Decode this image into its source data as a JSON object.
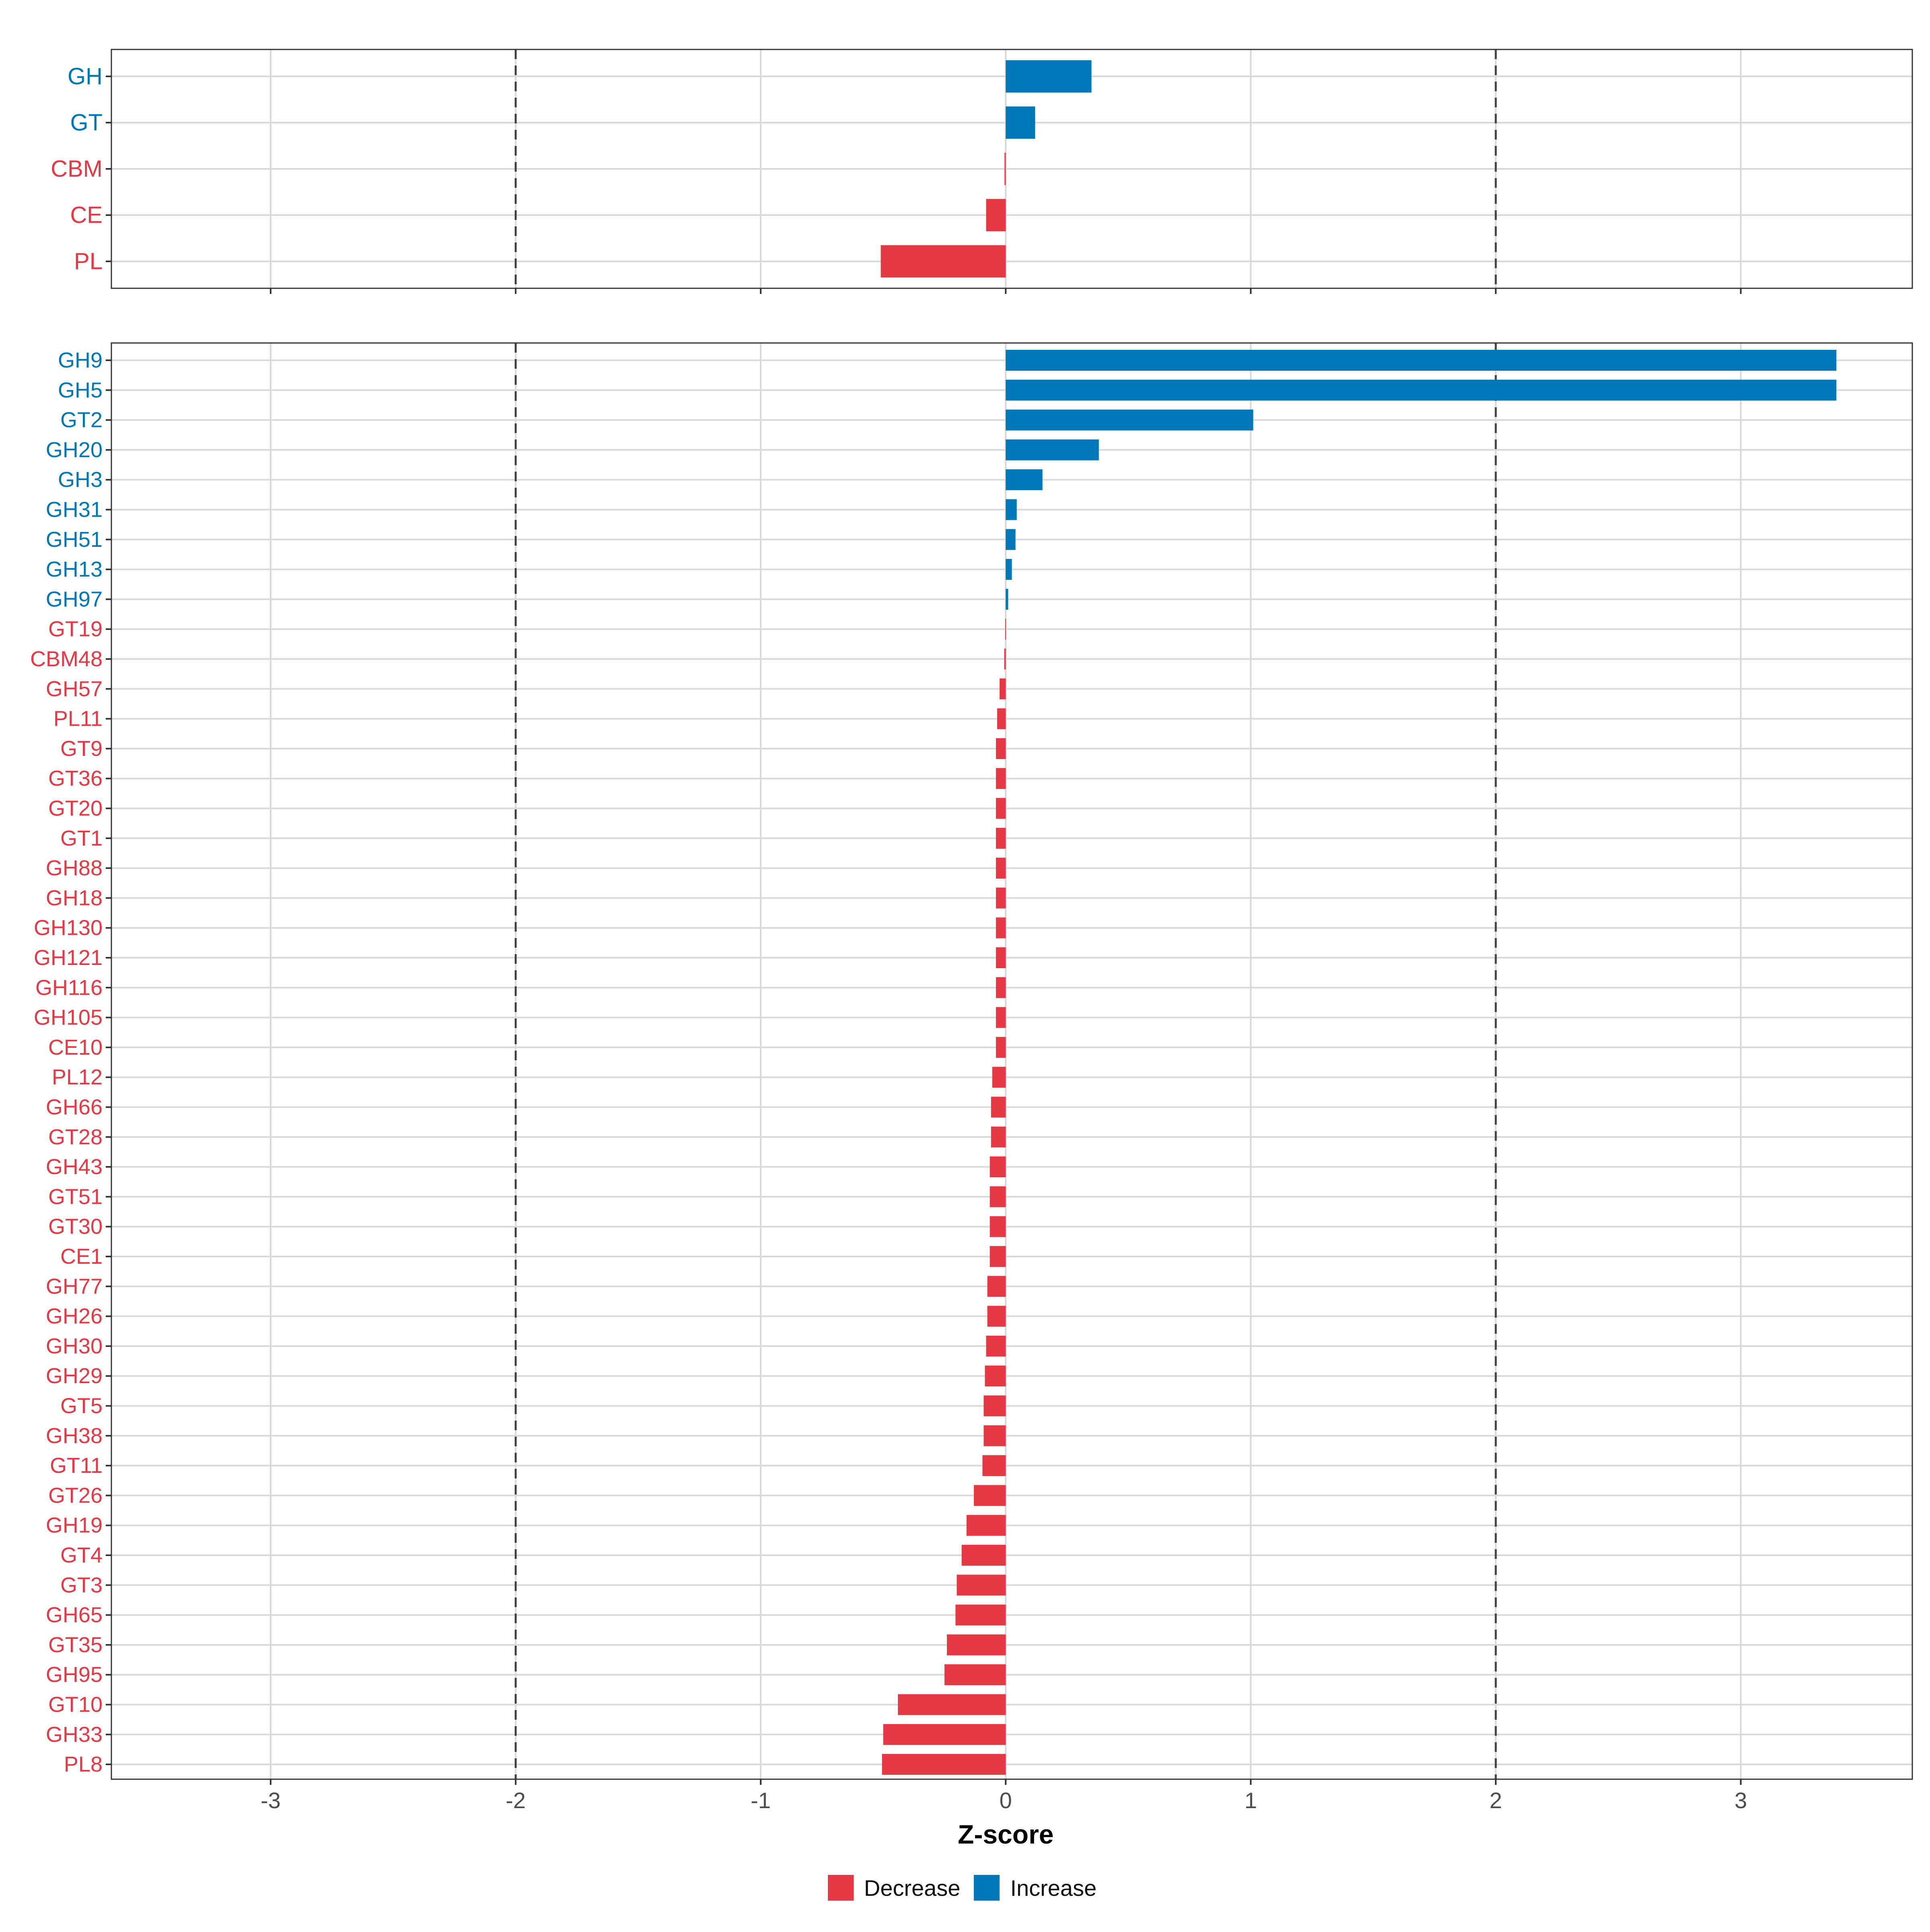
{
  "colors": {
    "decrease": "#E63946",
    "increase": "#0077B6",
    "grid": "#D9D9D9",
    "panel_border": "#333333",
    "refline": "#444444",
    "axis_text": "#333333"
  },
  "chart_data": {
    "type": "bar",
    "orientation": "horizontal",
    "xlabel": "Z-score",
    "xlim": [
      -3.65,
      3.7
    ],
    "xticks": [
      -3,
      -2,
      -1,
      0,
      1,
      2,
      3
    ],
    "xtick_labels": [
      "-3",
      "-2",
      "-1",
      "0",
      "1",
      "2",
      "3"
    ],
    "reference_lines": [
      -2,
      2
    ],
    "grid": true,
    "legend": {
      "placement": "bottom",
      "items": [
        {
          "key": "decrease",
          "label": "Decrease"
        },
        {
          "key": "increase",
          "label": "Increase"
        }
      ]
    },
    "panels": [
      {
        "name": "class",
        "categories": [
          "GH",
          "GT",
          "CBM",
          "CE",
          "PL"
        ],
        "values": [
          0.35,
          0.12,
          -0.005,
          -0.08,
          -0.51
        ]
      },
      {
        "name": "family",
        "categories": [
          "GH9",
          "GH5",
          "GT2",
          "GH20",
          "GH3",
          "GH31",
          "GH51",
          "GH13",
          "GH97",
          "GT19",
          "CBM48",
          "GH57",
          "PL11",
          "GT9",
          "GT36",
          "GT20",
          "GT1",
          "GH88",
          "GH18",
          "GH130",
          "GH121",
          "GH116",
          "GH105",
          "CE10",
          "PL12",
          "GH66",
          "GT28",
          "GH43",
          "GT51",
          "GT30",
          "CE1",
          "GH77",
          "GH26",
          "GH30",
          "GH29",
          "GT5",
          "GH38",
          "GT11",
          "GT26",
          "GH19",
          "GT4",
          "GT3",
          "GH65",
          "GT35",
          "GH95",
          "GT10",
          "GH33",
          "PL8"
        ],
        "values": [
          3.39,
          3.39,
          1.01,
          0.38,
          0.15,
          0.045,
          0.04,
          0.025,
          0.01,
          -0.002,
          -0.006,
          -0.025,
          -0.035,
          -0.04,
          -0.04,
          -0.04,
          -0.04,
          -0.04,
          -0.04,
          -0.04,
          -0.04,
          -0.04,
          -0.04,
          -0.04,
          -0.055,
          -0.06,
          -0.06,
          -0.065,
          -0.065,
          -0.065,
          -0.065,
          -0.075,
          -0.075,
          -0.08,
          -0.085,
          -0.09,
          -0.09,
          -0.095,
          -0.13,
          -0.16,
          -0.18,
          -0.2,
          -0.205,
          -0.24,
          -0.25,
          -0.44,
          -0.5,
          -0.505
        ]
      }
    ]
  }
}
